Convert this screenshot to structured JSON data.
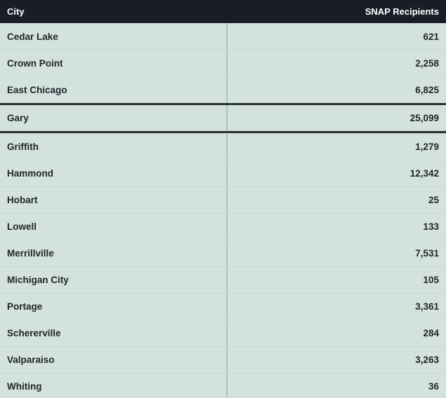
{
  "table": {
    "columns": {
      "city_label": "City",
      "value_label": "SNAP Recipients"
    },
    "rows": [
      {
        "city": "Cedar Lake",
        "value": "621",
        "highlighted": false
      },
      {
        "city": "Crown Point",
        "value": "2,258",
        "highlighted": false
      },
      {
        "city": "East Chicago",
        "value": "6,825",
        "highlighted": false
      },
      {
        "city": "Gary",
        "value": "25,099",
        "highlighted": true
      },
      {
        "city": "Griffith",
        "value": "1,279",
        "highlighted": false
      },
      {
        "city": "Hammond",
        "value": "12,342",
        "highlighted": false
      },
      {
        "city": "Hobart",
        "value": "25",
        "highlighted": false
      },
      {
        "city": "Lowell",
        "value": "133",
        "highlighted": false
      },
      {
        "city": "Merrillville",
        "value": "7,531",
        "highlighted": false
      },
      {
        "city": "Michigan City",
        "value": "105",
        "highlighted": false
      },
      {
        "city": "Portage",
        "value": "3,361",
        "highlighted": false
      },
      {
        "city": "Schererville",
        "value": "284",
        "highlighted": false
      },
      {
        "city": "Valparaiso",
        "value": "3,263",
        "highlighted": false
      },
      {
        "city": "Whiting",
        "value": "36",
        "highlighted": false
      }
    ],
    "colors": {
      "header_bg": "#1a1d27",
      "header_text": "#ffffff",
      "row_bg": "#d4e2dd",
      "row_text": "#21252b",
      "row_separator": "#c9d7d2",
      "column_divider": "#a9c6bd",
      "highlight_border": "#2b2f36"
    }
  },
  "chart_data": {
    "type": "table",
    "title": "",
    "categories": [
      "Cedar Lake",
      "Crown Point",
      "East Chicago",
      "Gary",
      "Griffith",
      "Hammond",
      "Hobart",
      "Lowell",
      "Merrillville",
      "Michigan City",
      "Portage",
      "Schererville",
      "Valparaiso",
      "Whiting"
    ],
    "values": [
      621,
      2258,
      6825,
      25099,
      1279,
      12342,
      25,
      133,
      7531,
      105,
      3361,
      284,
      3263,
      36
    ],
    "xlabel": "City",
    "ylabel": "SNAP Recipients",
    "highlighted_category": "Gary"
  }
}
